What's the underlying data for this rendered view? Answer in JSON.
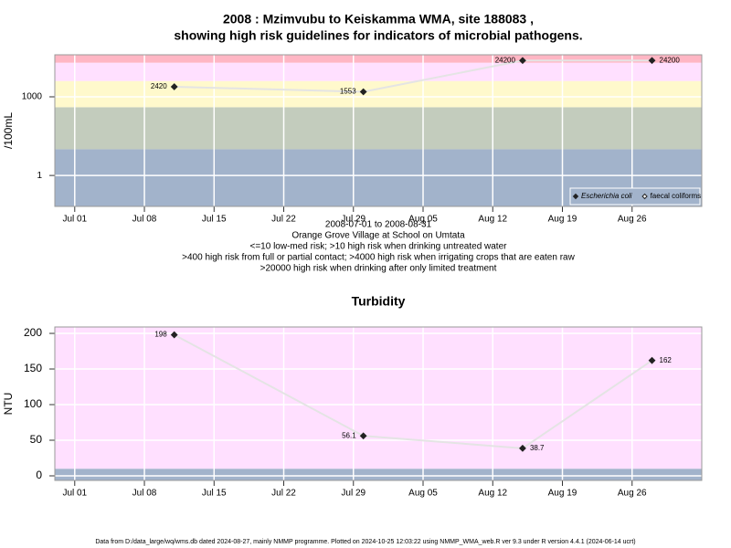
{
  "chart_data": [
    {
      "type": "line",
      "title": [
        "2008 : Mzimvubu to Keiskamma WMA, site 188083 ,",
        "showing high risk guidelines for indicators of microbial pathogens."
      ],
      "ylabel": "/100mL",
      "xlabel": "2008-07-01 to 2008-08-31",
      "notes": [
        "Orange Grove Village at School on Umtata",
        "<=10 low-med risk; >10 high risk when drinking untreated water",
        ">400 high risk from full or partial contact; >4000 high risk when irrigating crops that are eaten raw",
        ">20000 high risk when drinking after only limited treatment"
      ],
      "log_y": true,
      "ylim": [
        0.066,
        40000
      ],
      "yticks": [
        1,
        1000
      ],
      "xlim": [
        "2008-06-29",
        "2008-09-02"
      ],
      "xticks": [
        {
          "value": "2008-07-01",
          "label": "Jul 01"
        },
        {
          "value": "2008-07-08",
          "label": "Jul 08"
        },
        {
          "value": "2008-07-15",
          "label": "Jul 15"
        },
        {
          "value": "2008-07-22",
          "label": "Jul 22"
        },
        {
          "value": "2008-07-29",
          "label": "Jul 29"
        },
        {
          "value": "2008-08-05",
          "label": "Aug 05"
        },
        {
          "value": "2008-08-12",
          "label": "Aug 12"
        },
        {
          "value": "2008-08-19",
          "label": "Aug 19"
        },
        {
          "value": "2008-08-26",
          "label": "Aug 26"
        }
      ],
      "grid": true,
      "band_edges": [
        10,
        400,
        4000,
        20000
      ],
      "band_colors": [
        "#a2b3cb",
        "#c3ccbd",
        "#fff9cc",
        "#ffe0ff",
        "#ffb6c4"
      ],
      "legend": "bottom-right",
      "line_color": "#e4e4e4",
      "x": [
        "2008-07-11",
        "2008-07-30",
        "2008-08-15",
        "2008-08-28"
      ],
      "series": [
        {
          "name": "Escherichia coli",
          "color": "#222222",
          "open": false,
          "values": [
            2420,
            1553,
            24200,
            24200
          ]
        },
        {
          "name": "faecal coliforms",
          "color": "#222222",
          "open": true,
          "values": [
            null,
            null,
            null,
            null
          ]
        }
      ]
    },
    {
      "type": "line",
      "title": [
        "Turbidity"
      ],
      "ylabel": "NTU",
      "log_y": false,
      "ylim": [
        -6.4,
        209
      ],
      "yticks": [
        0,
        50,
        100,
        150,
        200
      ],
      "xlim": [
        "2008-06-29",
        "2008-09-02"
      ],
      "xticks": [
        {
          "value": "2008-07-01",
          "label": "Jul 01"
        },
        {
          "value": "2008-07-08",
          "label": "Jul 08"
        },
        {
          "value": "2008-07-15",
          "label": "Jul 15"
        },
        {
          "value": "2008-07-22",
          "label": "Jul 22"
        },
        {
          "value": "2008-07-29",
          "label": "Jul 29"
        },
        {
          "value": "2008-08-05",
          "label": "Aug 05"
        },
        {
          "value": "2008-08-12",
          "label": "Aug 12"
        },
        {
          "value": "2008-08-19",
          "label": "Aug 19"
        },
        {
          "value": "2008-08-26",
          "label": "Aug 26"
        }
      ],
      "grid": true,
      "band_edges": [
        10
      ],
      "band_colors": [
        "#a2b3cb",
        "#ffe0ff"
      ],
      "line_color": "#e4e4e4",
      "x": [
        "2008-07-11",
        "2008-07-30",
        "2008-08-15",
        "2008-08-28"
      ],
      "series": [
        {
          "color": "#222222",
          "open": false,
          "values": [
            198,
            56.1,
            38.7,
            162
          ]
        }
      ]
    }
  ],
  "footer": "Data from D:/data_large/wq/wms.db dated 2024-08-27, mainly NMMP programme. Plotted on 2024-10-25 12:03:22 using NMMP_WMA_web.R ver 9.3 under R version 4.4.1 (2024-06-14 ucrt)"
}
